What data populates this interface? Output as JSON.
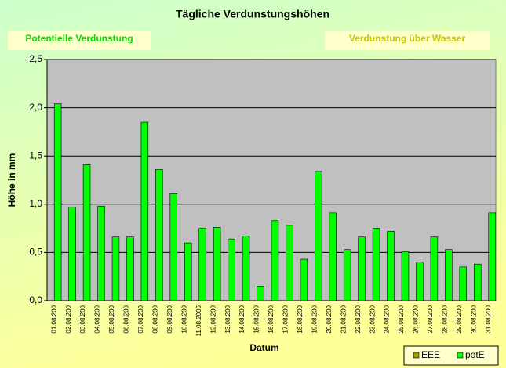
{
  "chart_data": {
    "type": "bar",
    "title": "Tägliche Verdunstungshöhen",
    "annotations": [
      "Potentielle Verdunstung",
      "Verdunstung über Wasser"
    ],
    "x_label": "Datum",
    "y_label": "Höhe in mm",
    "categories": [
      "01.08.200",
      "02.08.200",
      "03.08.200",
      "04.08.200",
      "05.08.200",
      "06.08.200",
      "07.08.200",
      "08.08.200",
      "09.08.200",
      "10.08.200",
      "11.08.2006",
      "12.08.200",
      "13.08.200",
      "14.08.200",
      "15.08.200",
      "16.08.200",
      "17.08.200",
      "18.08.200",
      "19.08.200",
      "20.08.200",
      "21.08.200",
      "22.08.200",
      "23.08.200",
      "24.08.200",
      "25.08.200",
      "26.08.200",
      "27.08.200",
      "28.08.200",
      "29.08.200",
      "30.08.200",
      "31.08.200"
    ],
    "series": [
      {
        "name": "EEE",
        "color": "#999900",
        "values": [
          null,
          null,
          null,
          null,
          null,
          null,
          null,
          null,
          null,
          null,
          null,
          null,
          null,
          null,
          null,
          null,
          null,
          null,
          null,
          null,
          null,
          null,
          null,
          null,
          null,
          null,
          null,
          null,
          null,
          null,
          null
        ]
      },
      {
        "name": "potE",
        "color": "#00ff00",
        "values": [
          2.04,
          0.97,
          1.41,
          0.98,
          0.66,
          0.66,
          1.85,
          1.36,
          1.11,
          0.6,
          0.75,
          0.76,
          0.64,
          0.67,
          0.15,
          0.83,
          0.78,
          0.43,
          1.34,
          0.91,
          0.53,
          0.66,
          0.75,
          0.72,
          0.51,
          0.4,
          0.66,
          0.53,
          0.35,
          0.38,
          0.91
        ]
      }
    ],
    "ylim": [
      0,
      2.5
    ],
    "yticks": [
      {
        "value": 0,
        "label": "0,0"
      },
      {
        "value": 0.5,
        "label": "0,5"
      },
      {
        "value": 1,
        "label": "1,0"
      },
      {
        "value": 1.5,
        "label": "1,5"
      },
      {
        "value": 2,
        "label": "2,0"
      },
      {
        "value": 2.5,
        "label": "2,5"
      }
    ],
    "grid": true,
    "legend": "bottom-right"
  }
}
